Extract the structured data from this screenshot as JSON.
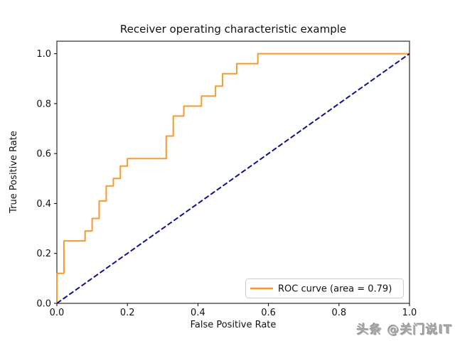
{
  "figure": {
    "title": "Receiver operating characteristic example",
    "xlabel": "False Positive Rate",
    "ylabel": "True Positive Rate"
  },
  "legend": {
    "roc_label": "ROC curve (area = 0.79)"
  },
  "watermark": {
    "text": "头条 @关门说IT"
  },
  "colors": {
    "roc_curve": "#f59b2e",
    "chance_line": "#10108a",
    "axis_frame": "#000000",
    "tick_text": "#111111",
    "legend_border": "#cccccc",
    "legend_background": "#ffffff",
    "watermark_gray": "#a9a9a9"
  },
  "chart_data": {
    "type": "line",
    "title": "Receiver operating characteristic example",
    "xlabel": "False Positive Rate",
    "ylabel": "True Positive Rate",
    "xlim": [
      0.0,
      1.0
    ],
    "ylim": [
      0.0,
      1.05
    ],
    "x_ticks": [
      "0.0",
      "0.2",
      "0.4",
      "0.6",
      "0.8",
      "1.0"
    ],
    "y_ticks": [
      "0.0",
      "0.2",
      "0.4",
      "0.6",
      "0.8",
      "1.0"
    ],
    "grid": false,
    "legend_position": "lower right",
    "auc": 0.79,
    "series": [
      {
        "name": "ROC curve (area = 0.79)",
        "style": "solid",
        "color": "#f59b2e",
        "width": 2,
        "points": [
          [
            0.0,
            0.0
          ],
          [
            0.0,
            0.12
          ],
          [
            0.02,
            0.12
          ],
          [
            0.02,
            0.25
          ],
          [
            0.08,
            0.25
          ],
          [
            0.08,
            0.29
          ],
          [
            0.1,
            0.29
          ],
          [
            0.1,
            0.34
          ],
          [
            0.12,
            0.34
          ],
          [
            0.12,
            0.41
          ],
          [
            0.14,
            0.41
          ],
          [
            0.14,
            0.47
          ],
          [
            0.16,
            0.47
          ],
          [
            0.16,
            0.5
          ],
          [
            0.18,
            0.5
          ],
          [
            0.18,
            0.55
          ],
          [
            0.2,
            0.55
          ],
          [
            0.2,
            0.58
          ],
          [
            0.31,
            0.58
          ],
          [
            0.31,
            0.67
          ],
          [
            0.33,
            0.67
          ],
          [
            0.33,
            0.75
          ],
          [
            0.36,
            0.75
          ],
          [
            0.36,
            0.79
          ],
          [
            0.41,
            0.79
          ],
          [
            0.41,
            0.83
          ],
          [
            0.45,
            0.83
          ],
          [
            0.45,
            0.87
          ],
          [
            0.47,
            0.87
          ],
          [
            0.47,
            0.92
          ],
          [
            0.51,
            0.92
          ],
          [
            0.51,
            0.96
          ],
          [
            0.57,
            0.96
          ],
          [
            0.57,
            1.0
          ],
          [
            1.0,
            1.0
          ]
        ]
      },
      {
        "name": "chance diagonal",
        "style": "dashed",
        "color": "#10108a",
        "width": 2,
        "points": [
          [
            0.0,
            0.0
          ],
          [
            1.0,
            1.0
          ]
        ]
      }
    ]
  }
}
